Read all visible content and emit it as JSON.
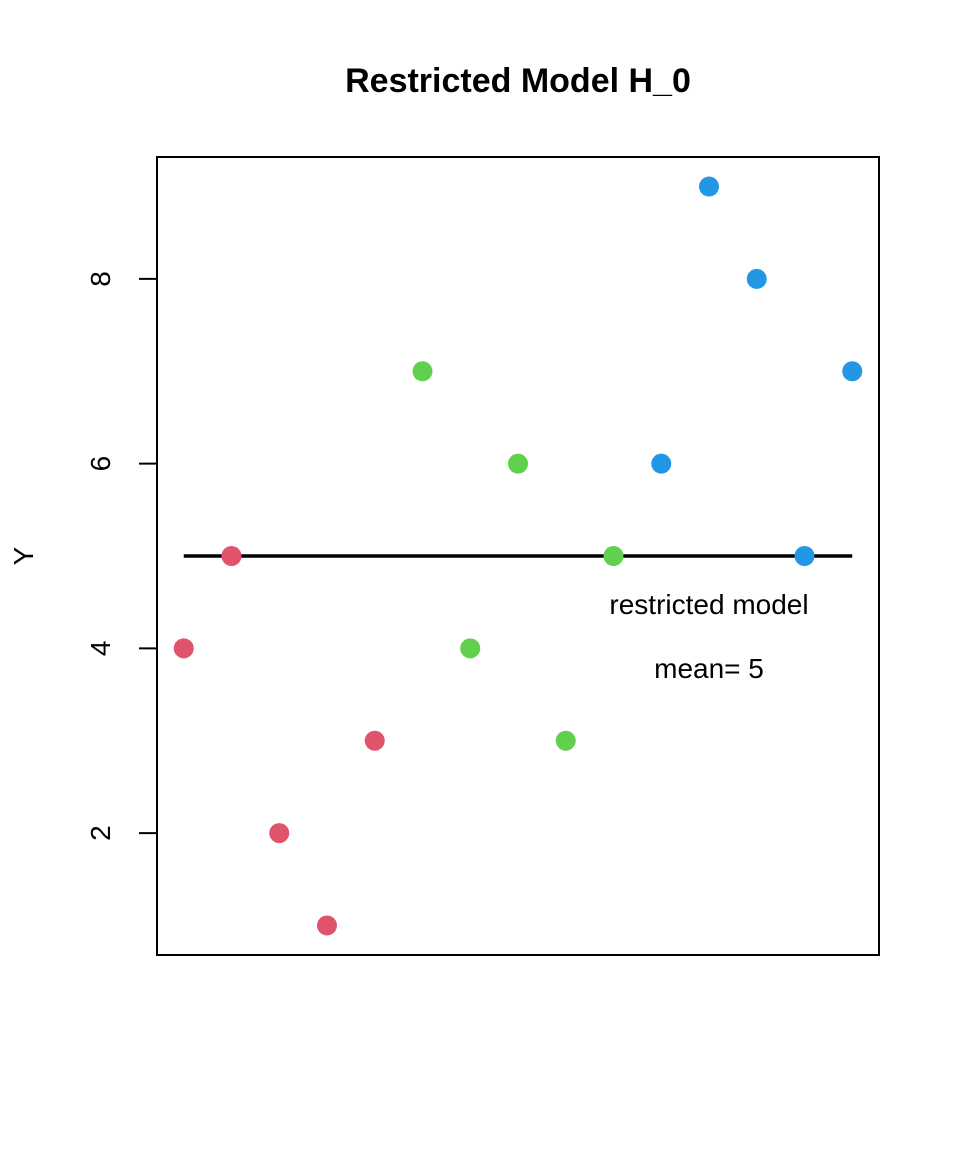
{
  "chart_data": {
    "type": "scatter",
    "title": "Restricted Model H_0",
    "y_label": "Y",
    "series": [
      {
        "color": "#DF536B",
        "x": [
          1,
          2,
          3,
          4,
          5
        ],
        "values": [
          4,
          5,
          2,
          1,
          3
        ]
      },
      {
        "color": "#61D04F",
        "x": [
          6,
          7,
          8,
          9,
          10
        ],
        "values": [
          7,
          4,
          6,
          3,
          5
        ]
      },
      {
        "color": "#2297E6",
        "x": [
          11,
          12,
          13,
          14,
          15
        ],
        "values": [
          6,
          9,
          8,
          5,
          7
        ]
      }
    ],
    "mean_line": {
      "value": 5,
      "x": [
        1,
        15
      ],
      "color": "#000000"
    },
    "annotations": [
      "restricted model",
      "mean= 5"
    ],
    "xlim": [
      0.44,
      15.56
    ],
    "ylim": [
      0.68,
      9.32
    ],
    "yticks": [
      2,
      4,
      6,
      8
    ]
  }
}
